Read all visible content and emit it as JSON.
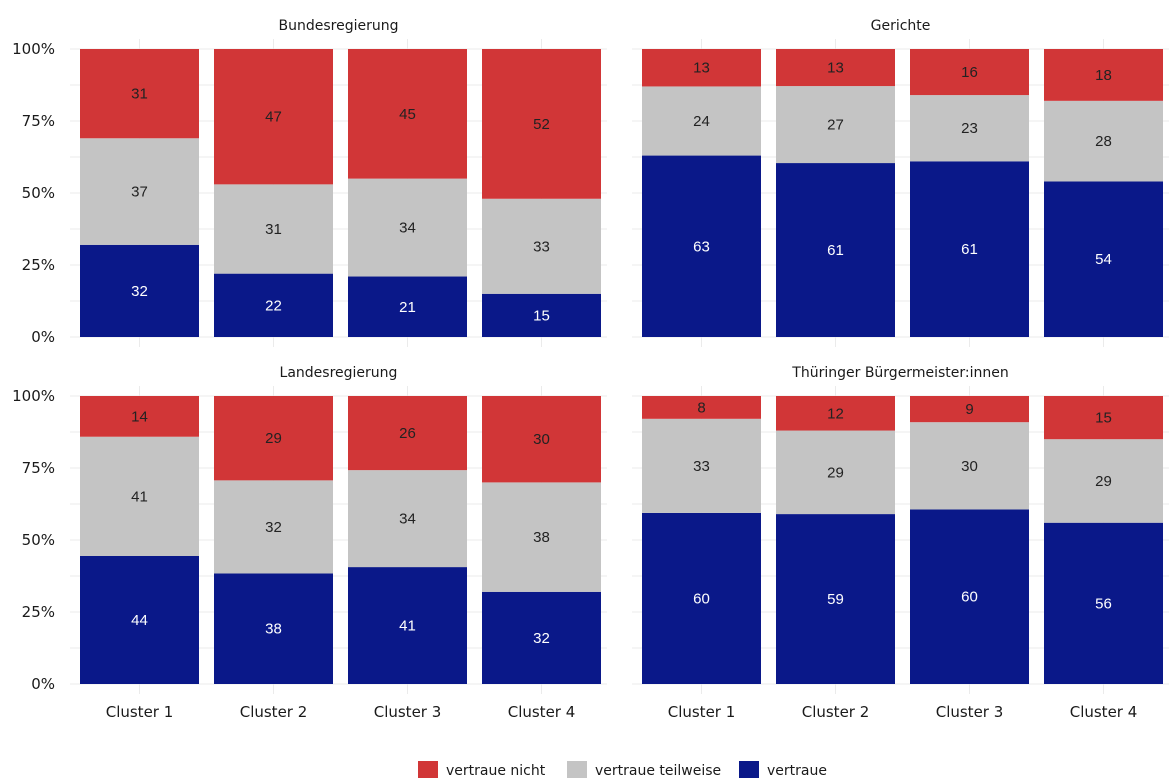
{
  "chart_data": {
    "type": "bar",
    "stacked": true,
    "percent": true,
    "categories": [
      "Cluster 1",
      "Cluster 2",
      "Cluster 3",
      "Cluster 4"
    ],
    "ylim": [
      0,
      100
    ],
    "yticks": [
      "0%",
      "25%",
      "50%",
      "75%",
      "100%"
    ],
    "grid": true,
    "legend_position": "bottom",
    "series": [
      {
        "name": "vertraue nicht",
        "color": "#d13637"
      },
      {
        "name": "vertraue teilweise",
        "color": "#c4c4c4"
      },
      {
        "name": "vertraue",
        "color": "#0a1889"
      }
    ],
    "facets": [
      {
        "title": "Bundesregierung",
        "values": {
          "vertraue": [
            32,
            22,
            21,
            15
          ],
          "vertraue teilweise": [
            37,
            31,
            34,
            33
          ],
          "vertraue nicht": [
            31,
            47,
            45,
            52
          ]
        }
      },
      {
        "title": "Gerichte",
        "values": {
          "vertraue": [
            63,
            61,
            61,
            54
          ],
          "vertraue teilweise": [
            24,
            27,
            23,
            28
          ],
          "vertraue nicht": [
            13,
            13,
            16,
            18
          ]
        }
      },
      {
        "title": "Landesregierung",
        "values": {
          "vertraue": [
            44,
            38,
            41,
            32
          ],
          "vertraue teilweise": [
            41,
            32,
            34,
            38
          ],
          "vertraue nicht": [
            14,
            29,
            26,
            30
          ]
        }
      },
      {
        "title": "Thüringer Bürgermeister:innen",
        "values": {
          "vertraue": [
            60,
            59,
            60,
            56
          ],
          "vertraue teilweise": [
            33,
            29,
            30,
            29
          ],
          "vertraue nicht": [
            8,
            12,
            9,
            15
          ]
        }
      }
    ]
  }
}
